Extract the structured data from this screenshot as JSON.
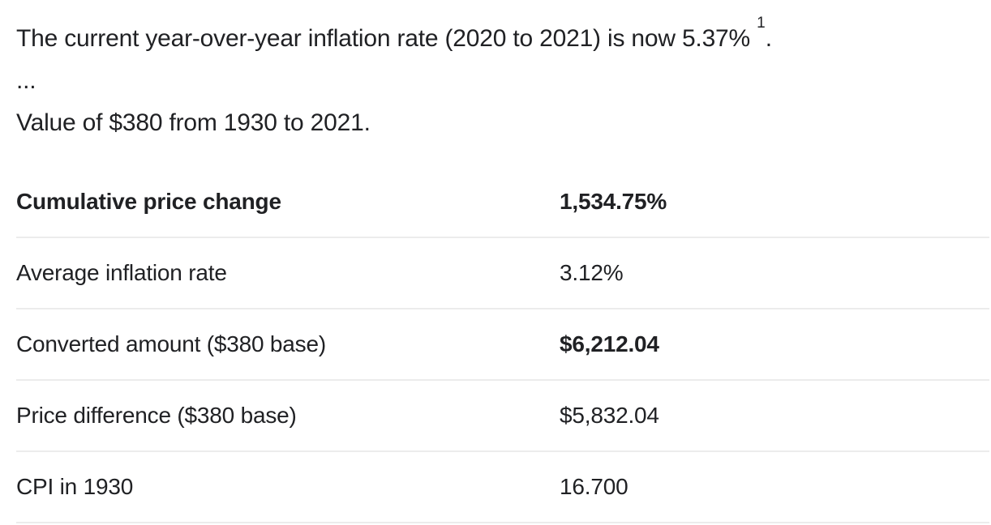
{
  "intro": {
    "sentence": "The current year-over-year inflation rate (2020 to 2021) is now 5.37%",
    "footnote_ref": "1",
    "sentence_end": ".",
    "ellipsis": "...",
    "value_sentence": "Value of $380 from 1930 to 2021."
  },
  "stats": {
    "rows": [
      {
        "label": "Cumulative price change",
        "value": "1,534.75%"
      },
      {
        "label": "Average inflation rate",
        "value": "3.12%"
      },
      {
        "label": "Converted amount ($380 base)",
        "value": "$6,212.04"
      },
      {
        "label": "Price difference ($380 base)",
        "value": "$5,832.04"
      },
      {
        "label": "CPI in 1930",
        "value": "16.700"
      }
    ]
  },
  "colors": {
    "text": "#202124",
    "divider": "#ececec",
    "background": "#ffffff"
  }
}
